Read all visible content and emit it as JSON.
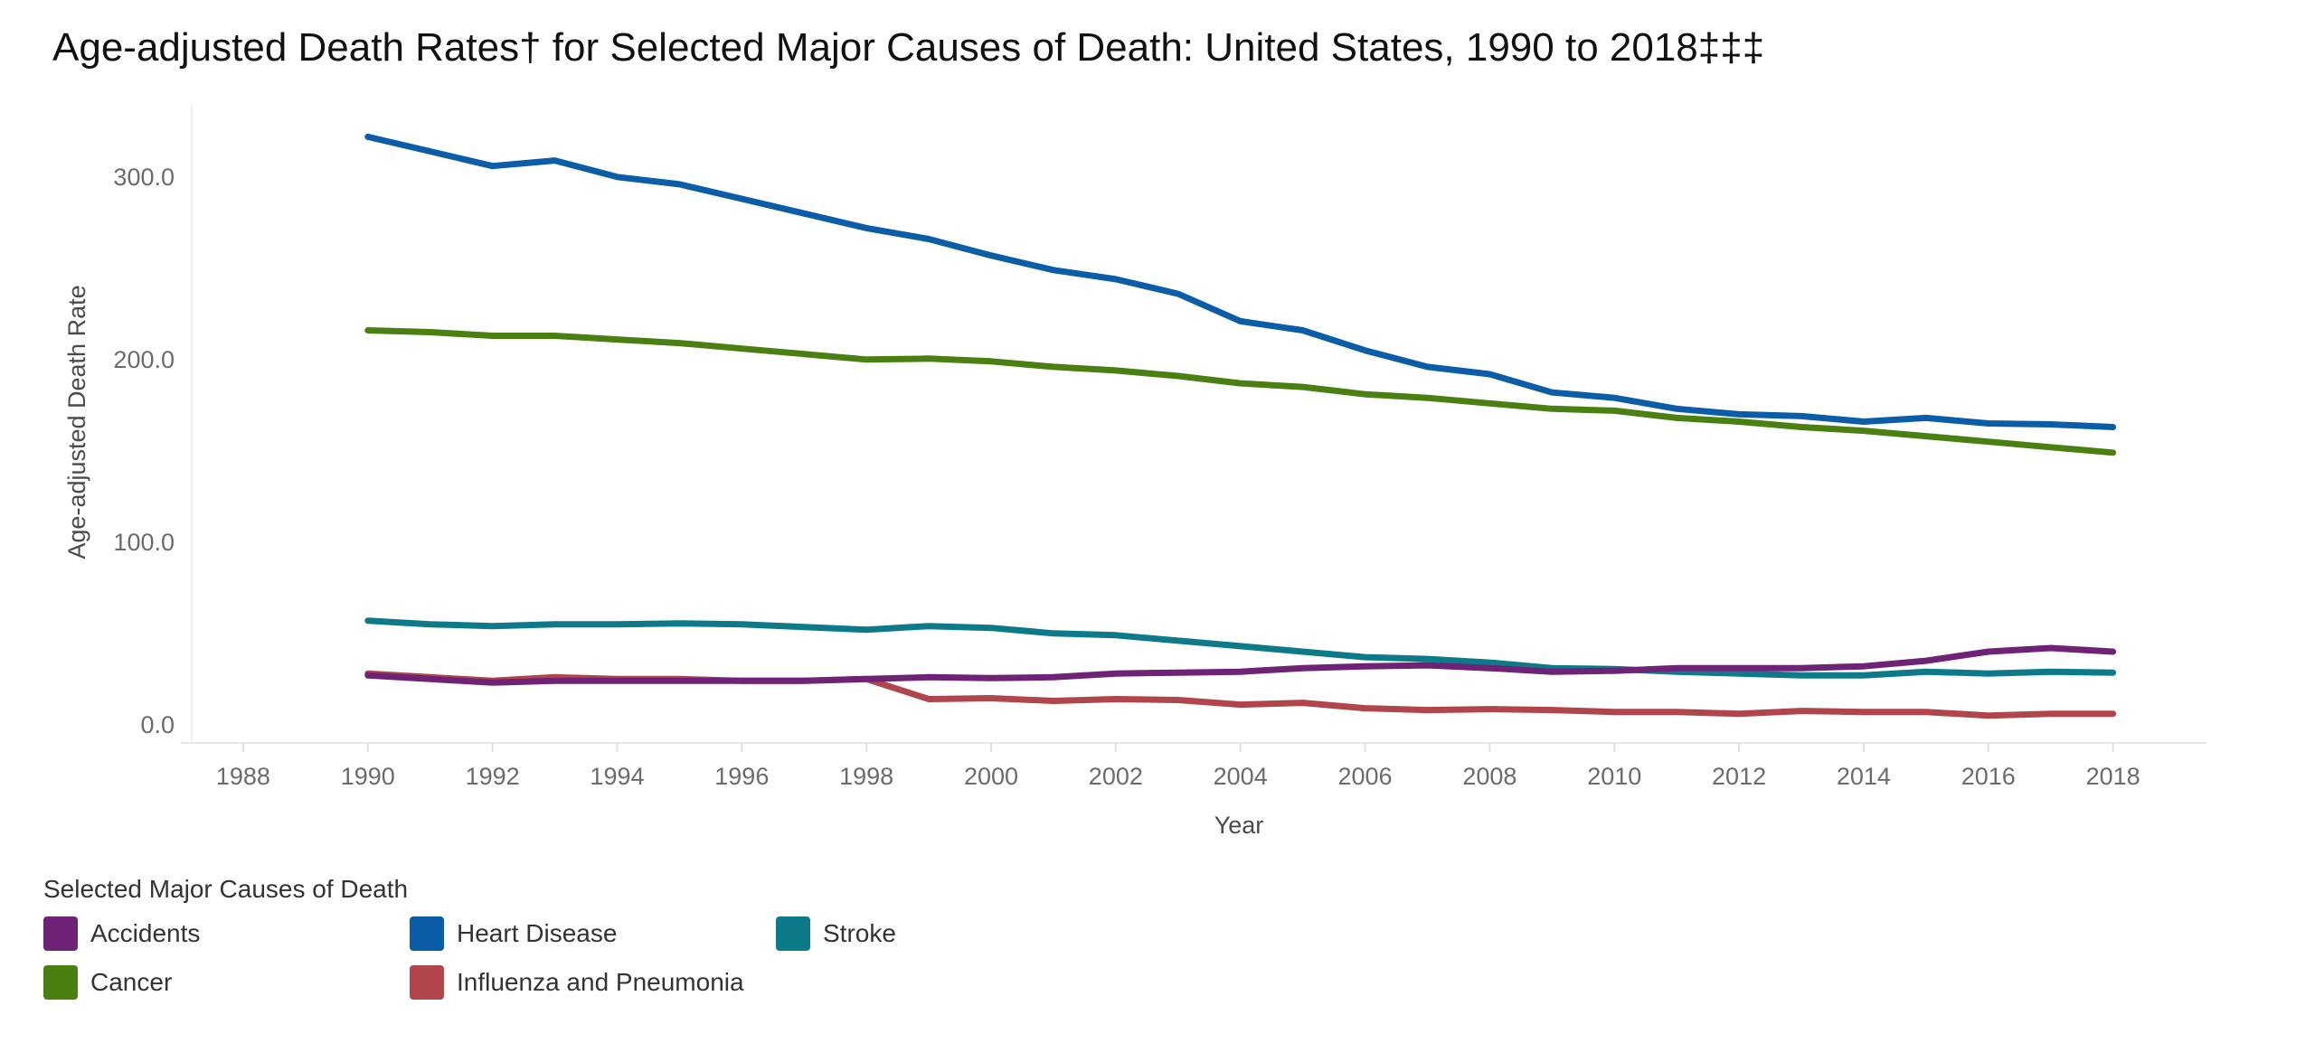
{
  "chart_data": {
    "type": "line",
    "title": "Age-adjusted Death Rates† for Selected Major Causes of Death: United States, 1990 to 2018‡‡‡",
    "xlabel": "Year",
    "ylabel": "Age-adjusted Death Rate",
    "xlim": [
      1987,
      2019.5
    ],
    "ylim": [
      -10,
      340
    ],
    "x_ticks": [
      "1988",
      "1990",
      "1992",
      "1994",
      "1996",
      "1998",
      "2000",
      "2002",
      "2004",
      "2006",
      "2008",
      "2010",
      "2012",
      "2014",
      "2016",
      "2018"
    ],
    "y_ticks": [
      "0.0",
      "100.0",
      "200.0",
      "300.0"
    ],
    "grid": false,
    "legend_title": "Selected Major Causes of Death",
    "legend_position": "bottom-left",
    "x": [
      1990,
      1991,
      1992,
      1993,
      1994,
      1995,
      1996,
      1997,
      1998,
      1999,
      2000,
      2001,
      2002,
      2003,
      2004,
      2005,
      2006,
      2007,
      2008,
      2009,
      2010,
      2011,
      2012,
      2013,
      2014,
      2015,
      2016,
      2017,
      2018
    ],
    "series": [
      {
        "name": "Accidents",
        "color": "#6E2377",
        "values": [
          27,
          25,
          23,
          24,
          24,
          24,
          24,
          24,
          25,
          26,
          25.5,
          26,
          28,
          28.5,
          29,
          31,
          32,
          32.5,
          31,
          29,
          29.5,
          31,
          31,
          31,
          32,
          35,
          40,
          42,
          40
        ]
      },
      {
        "name": "Heart Disease",
        "color": "#0A5DA6",
        "values": [
          322,
          314,
          306,
          309,
          300,
          296,
          288,
          280,
          272,
          266,
          257,
          249,
          244,
          236,
          221,
          216,
          205,
          196,
          192,
          182,
          179,
          173,
          170,
          169,
          166,
          168,
          165,
          164.5,
          163
        ]
      },
      {
        "name": "Cancer",
        "color": "#4A7F12",
        "values": [
          216,
          215,
          213,
          213,
          211,
          209,
          206,
          203,
          200,
          200.5,
          199,
          196,
          194,
          191,
          187,
          185,
          181,
          179,
          176,
          173,
          172,
          168,
          166,
          163,
          161,
          158,
          155,
          152,
          149
        ]
      },
      {
        "name": "Influenza and Pneumonia",
        "color": "#B0454C",
        "values": [
          28,
          26,
          24,
          26,
          25,
          25,
          24,
          24,
          25,
          14,
          14.5,
          13,
          14,
          13.5,
          11,
          12,
          9,
          8,
          8.5,
          8,
          7,
          7,
          6,
          7.5,
          7,
          7,
          5,
          6,
          6
        ]
      },
      {
        "name": "Stroke",
        "color": "#0D7A8A",
        "values": [
          57,
          55,
          54,
          55,
          55,
          55.5,
          55,
          53.5,
          52,
          54,
          53,
          50,
          49,
          46,
          43,
          40,
          37,
          36,
          34,
          31,
          30.5,
          29,
          28,
          27,
          27,
          29,
          28,
          29,
          28.5
        ]
      }
    ]
  }
}
